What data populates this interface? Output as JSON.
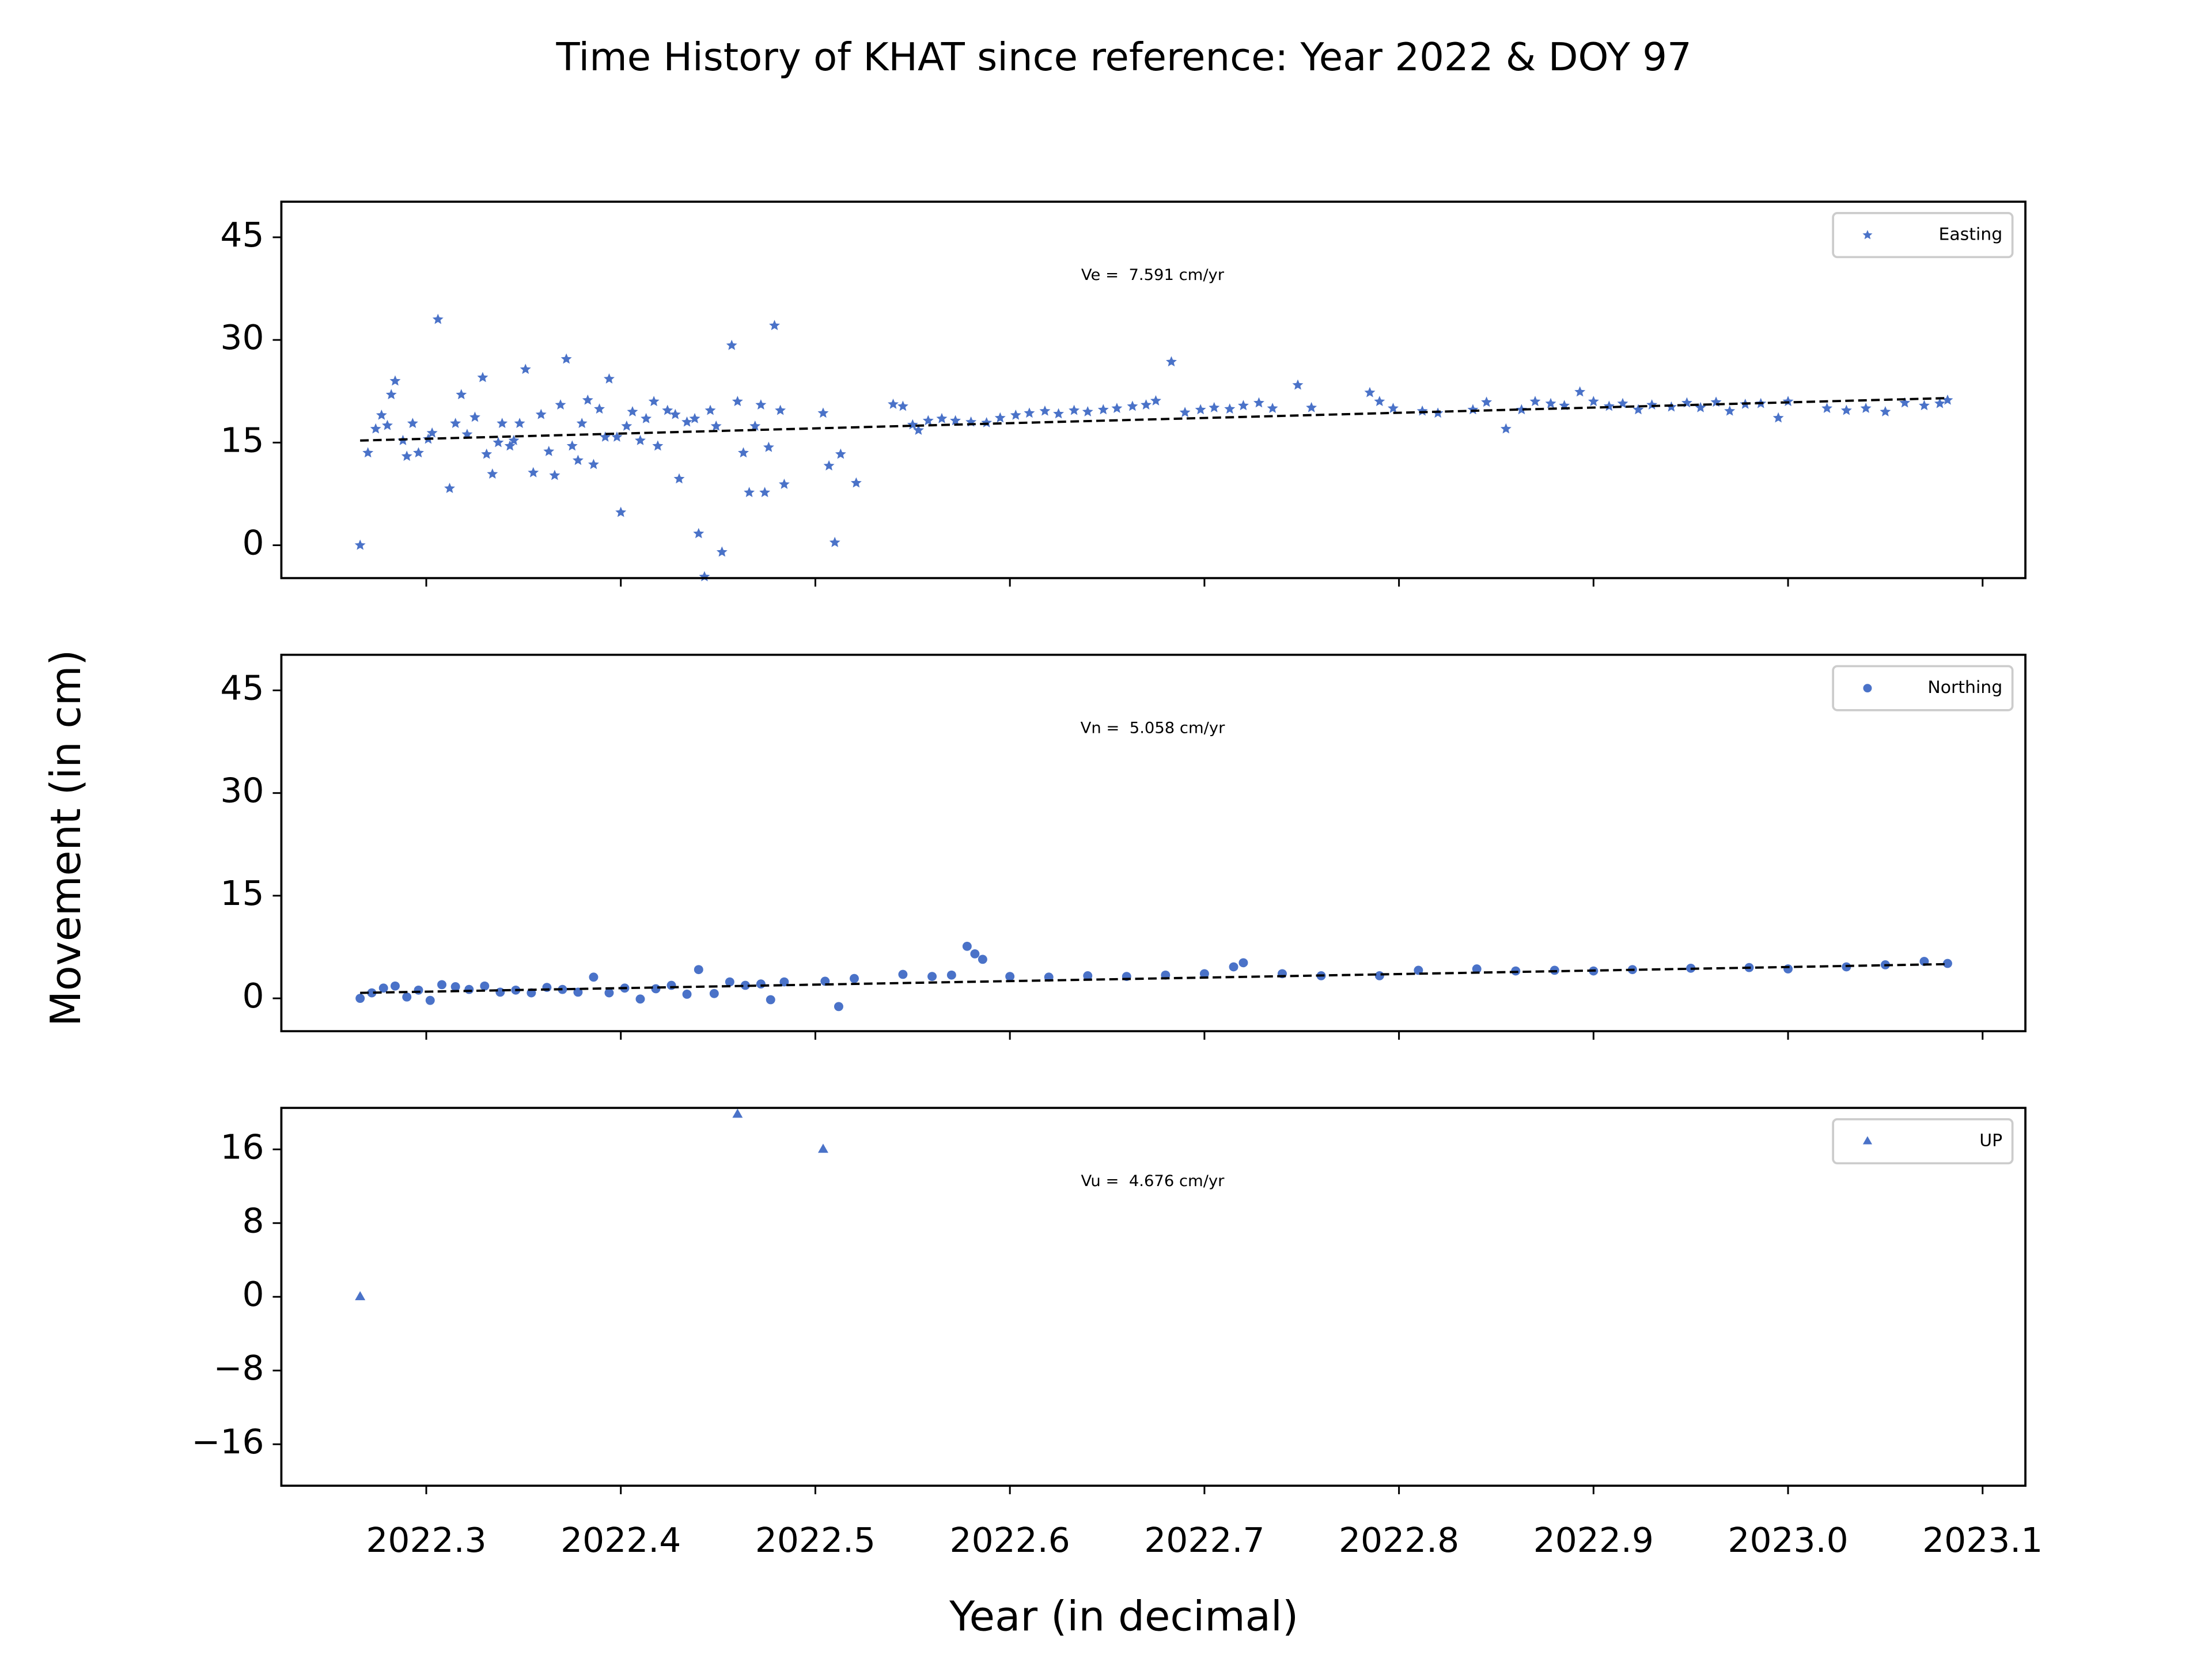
{
  "title": "Time History of KHAT since reference: Year 2022 & DOY 97",
  "ylabel": "Movement (in cm)",
  "chart_data": [
    {
      "type": "scatter",
      "marker": "star",
      "legend": "upper right",
      "annotation": "Ve =  7.591 cm/yr",
      "xlim": [
        2022.2255,
        2023.122
      ],
      "ylim": [
        -4.8,
        50.2
      ],
      "xticks": [
        2022.3,
        2022.4,
        2022.5,
        2022.6,
        2022.7,
        2022.8,
        2022.9,
        {
          "value": 2023,
          "label": "2023.0"
        },
        2023.1
      ],
      "yticks": [
        0,
        15,
        30,
        45
      ],
      "series": [
        {
          "name": "Easting",
          "color": "#4a72c8",
          "x": [
            2022.266,
            2022.27,
            2022.274,
            2022.277,
            2022.28,
            2022.282,
            2022.284,
            2022.288,
            2022.29,
            2022.293,
            2022.296,
            2022.301,
            2022.303,
            2022.306,
            2022.312,
            2022.315,
            2022.318,
            2022.321,
            2022.325,
            2022.329,
            2022.331,
            2022.334,
            2022.337,
            2022.339,
            2022.343,
            2022.345,
            2022.348,
            2022.351,
            2022.355,
            2022.359,
            2022.363,
            2022.366,
            2022.369,
            2022.372,
            2022.375,
            2022.378,
            2022.38,
            2022.383,
            2022.386,
            2022.389,
            2022.392,
            2022.394,
            2022.398,
            2022.4,
            2022.403,
            2022.406,
            2022.41,
            2022.413,
            2022.417,
            2022.419,
            2022.424,
            2022.428,
            2022.43,
            2022.434,
            2022.438,
            2022.44,
            2022.443,
            2022.446,
            2022.449,
            2022.452,
            2022.457,
            2022.46,
            2022.463,
            2022.466,
            2022.469,
            2022.472,
            2022.474,
            2022.476,
            2022.479,
            2022.482,
            2022.484,
            2022.504,
            2022.507,
            2022.51,
            2022.513,
            2022.521,
            2022.54,
            2022.545,
            2022.55,
            2022.553,
            2022.558,
            2022.565,
            2022.572,
            2022.58,
            2022.588,
            2022.595,
            2022.603,
            2022.61,
            2022.618,
            2022.625,
            2022.633,
            2022.64,
            2022.648,
            2022.655,
            2022.663,
            2022.67,
            2022.675,
            2022.683,
            2022.69,
            2022.698,
            2022.705,
            2022.713,
            2022.72,
            2022.728,
            2022.735,
            2022.748,
            2022.755,
            2022.785,
            2022.79,
            2022.797,
            2022.812,
            2022.82,
            2022.838,
            2022.845,
            2022.855,
            2022.863,
            2022.87,
            2022.878,
            2022.885,
            2022.893,
            2022.9,
            2022.908,
            2022.915,
            2022.923,
            2022.93,
            2022.94,
            2022.948,
            2022.955,
            2022.963,
            2022.97,
            2022.978,
            2022.986,
            2022.995,
            2023.0,
            2023.02,
            2023.03,
            2023.04,
            2023.05,
            2023.06,
            2023.07,
            2023.078,
            2023.082
          ],
          "values": [
            0,
            13.5,
            17,
            19,
            17.5,
            22,
            24,
            15.3,
            13,
            17.8,
            13.5,
            15.5,
            16.4,
            33,
            8.3,
            17.8,
            22,
            16.2,
            18.7,
            24.5,
            13.3,
            10.4,
            15,
            17.8,
            14.5,
            15.3,
            17.8,
            25.7,
            10.6,
            19.1,
            13.7,
            10.2,
            20.5,
            27.2,
            14.5,
            12.4,
            17.8,
            21.2,
            11.8,
            19.9,
            15.8,
            24.3,
            15.8,
            4.8,
            17.4,
            19.5,
            15.3,
            18.5,
            21,
            14.5,
            19.7,
            19.1,
            9.7,
            18,
            18.5,
            1.7,
            -4.6,
            19.7,
            17.4,
            -1,
            29.2,
            21,
            13.5,
            7.7,
            17.4,
            20.5,
            7.7,
            14.3,
            32.1,
            19.7,
            8.9,
            19.3,
            11.6,
            0.4,
            13.3,
            9.1,
            20.6,
            20.3,
            17.6,
            16.8,
            18.2,
            18.5,
            18.2,
            18,
            17.9,
            18.6,
            19,
            19.3,
            19.6,
            19.2,
            19.7,
            19.5,
            19.8,
            20,
            20.3,
            20.5,
            21.1,
            26.8,
            19.4,
            19.8,
            20.1,
            19.9,
            20.4,
            20.8,
            20,
            23.4,
            20.1,
            22.3,
            21,
            20,
            19.6,
            19.3,
            19.8,
            20.9,
            17,
            19.8,
            21,
            20.7,
            20.4,
            22.4,
            21,
            20.3,
            20.7,
            19.8,
            20.5,
            20.2,
            20.8,
            20.1,
            20.9,
            19.6,
            20.6,
            20.7,
            18.6,
            21,
            20,
            19.7,
            20,
            19.5,
            20.8,
            20.4,
            20.7,
            21.2
          ]
        }
      ],
      "trend": {
        "x": [
          2022.266,
          2023.082
        ],
        "values": [
          15.3,
          21.5
        ]
      }
    },
    {
      "type": "scatter",
      "marker": "circle",
      "legend": "upper right",
      "annotation": "Vn =  5.058 cm/yr",
      "xlim": [
        2022.2255,
        2023.122
      ],
      "ylim": [
        -4.8,
        50.2
      ],
      "xticks": [
        2022.3,
        2022.4,
        2022.5,
        2022.6,
        2022.7,
        2022.8,
        2022.9,
        {
          "value": 2023,
          "label": "2023.0"
        },
        2023.1
      ],
      "yticks": [
        0,
        15,
        30,
        45
      ],
      "series": [
        {
          "name": "Northing",
          "color": "#4a72c8",
          "x": [
            2022.266,
            2022.272,
            2022.278,
            2022.284,
            2022.29,
            2022.296,
            2022.302,
            2022.308,
            2022.315,
            2022.322,
            2022.33,
            2022.338,
            2022.346,
            2022.354,
            2022.362,
            2022.37,
            2022.378,
            2022.386,
            2022.394,
            2022.402,
            2022.41,
            2022.418,
            2022.426,
            2022.434,
            2022.44,
            2022.448,
            2022.456,
            2022.464,
            2022.472,
            2022.477,
            2022.484,
            2022.505,
            2022.512,
            2022.52,
            2022.545,
            2022.56,
            2022.57,
            2022.578,
            2022.582,
            2022.586,
            2022.6,
            2022.62,
            2022.64,
            2022.66,
            2022.68,
            2022.7,
            2022.715,
            2022.72,
            2022.74,
            2022.76,
            2022.79,
            2022.81,
            2022.84,
            2022.86,
            2022.88,
            2022.9,
            2022.92,
            2022.95,
            2022.98,
            2023.0,
            2023.03,
            2023.05,
            2023.07,
            2023.082
          ],
          "values": [
            0,
            0.8,
            1.5,
            1.8,
            0.2,
            1.2,
            -0.3,
            2,
            1.7,
            1.3,
            1.8,
            0.9,
            1.2,
            0.8,
            1.6,
            1.3,
            0.9,
            3.1,
            0.8,
            1.5,
            -0.1,
            1.4,
            1.9,
            0.6,
            4.2,
            0.7,
            2.4,
            1.9,
            2.1,
            -0.2,
            2.4,
            2.5,
            -1.2,
            2.9,
            3.5,
            3.2,
            3.4,
            7.6,
            6.5,
            5.7,
            3.2,
            3.1,
            3.3,
            3.2,
            3.4,
            3.6,
            4.6,
            5.2,
            3.6,
            3.3,
            3.3,
            4.1,
            4.3,
            4,
            4.1,
            4,
            4.2,
            4.4,
            4.5,
            4.3,
            4.6,
            4.9,
            5.4,
            5.1
          ]
        }
      ],
      "trend": {
        "x": [
          2022.266,
          2023.082
        ],
        "values": [
          0.8,
          5.0
        ]
      }
    },
    {
      "type": "scatter",
      "marker": "triangle",
      "legend": "upper right",
      "annotation": "Vu =  4.676 cm/yr",
      "xlabel": "Year (in decimal)",
      "xlim": [
        2022.2255,
        2023.122
      ],
      "ylim": [
        -20.5,
        20.5
      ],
      "xticks": [
        2022.3,
        2022.4,
        2022.5,
        2022.6,
        2022.7,
        2022.8,
        2022.9,
        {
          "value": 2023,
          "label": "2023.0"
        },
        2023.1
      ],
      "yticks": [
        {
          "value": -16,
          "label": "−16"
        },
        {
          "value": -8,
          "label": "−8"
        },
        0,
        8,
        16
      ],
      "series": [
        {
          "name": "UP",
          "color": "#4a72c8",
          "x": [
            2022.266,
            2022.46,
            2022.504
          ],
          "values": [
            0,
            19.8,
            16
          ]
        }
      ]
    }
  ]
}
